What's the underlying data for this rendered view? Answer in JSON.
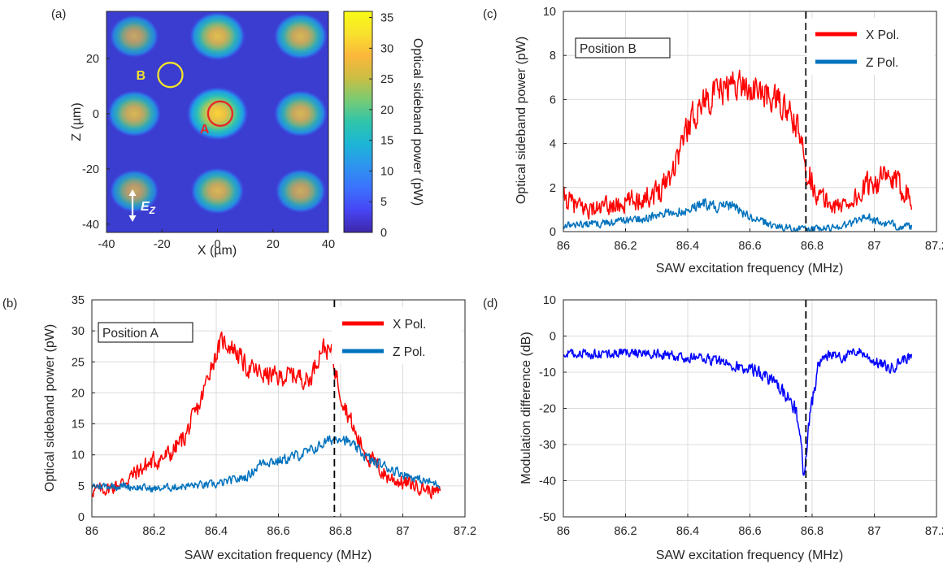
{
  "figure": {
    "panel_labels": [
      "(a)",
      "(b)",
      "(c)",
      "(d)"
    ]
  },
  "chart_data": [
    {
      "panel": "(a)",
      "type": "heatmap",
      "xlabel": "X (µm)",
      "ylabel": "Z (µm)",
      "xlim": [
        -40,
        40
      ],
      "ylim": [
        -43,
        37
      ],
      "xticks": [
        "-40",
        "-20",
        "0",
        "20",
        "40"
      ],
      "yticks": [
        "-40",
        "-20",
        "0",
        "20"
      ],
      "colorbar": {
        "label": "Optical sideband power (pW)",
        "range": [
          0,
          36
        ],
        "ticks": [
          "0",
          "5",
          "10",
          "15",
          "20",
          "25",
          "30",
          "35"
        ],
        "colormap": [
          "#3e26a8",
          "#4745f4",
          "#3b71fe",
          "#2e94ef",
          "#1cb5d6",
          "#2fc5ab",
          "#79cb73",
          "#cbbe43",
          "#fbb73b",
          "#f9e22d",
          "#f9fb15"
        ]
      },
      "hotspots": [
        {
          "x": 0,
          "z": 0,
          "value": 33
        },
        {
          "x": -30,
          "z": 0,
          "value": 22
        },
        {
          "x": 30,
          "z": 0,
          "value": 22
        },
        {
          "x": 0,
          "z": 28,
          "value": 25
        },
        {
          "x": -30,
          "z": 28,
          "value": 16
        },
        {
          "x": 30,
          "z": 28,
          "value": 22
        },
        {
          "x": 0,
          "z": -28,
          "value": 22
        },
        {
          "x": -30,
          "z": -28,
          "value": 16
        },
        {
          "x": 30,
          "z": -28,
          "value": 18
        }
      ],
      "markers": [
        {
          "label": "A",
          "x": 1,
          "z": 0,
          "color": "#e8262a"
        },
        {
          "label": "B",
          "x": -17,
          "z": 14,
          "color": "#f2e32b"
        }
      ],
      "annotation": {
        "label": "E",
        "subscript": "Z",
        "color": "#ffffff"
      }
    },
    {
      "panel": "(b)",
      "type": "line",
      "xlabel": "SAW excitation frequency (MHz)",
      "ylabel": "Optical sideband power (pW)",
      "xlim": [
        86,
        87.2
      ],
      "ylim": [
        0,
        35
      ],
      "xticks": [
        "86",
        "86.2",
        "86.4",
        "86.6",
        "86.8",
        "87",
        "87.2"
      ],
      "yticks": [
        "0",
        "5",
        "10",
        "15",
        "20",
        "25",
        "30",
        "35"
      ],
      "box_label": "Position A",
      "vline_x": 86.78,
      "noise": 1.4,
      "series": [
        {
          "name": "X Pol.",
          "color": "#ff0000",
          "x": [
            86.0,
            86.05,
            86.1,
            86.15,
            86.2,
            86.25,
            86.3,
            86.35,
            86.38,
            86.42,
            86.46,
            86.5,
            86.55,
            86.6,
            86.65,
            86.7,
            86.74,
            86.77,
            86.8,
            86.85,
            86.9,
            86.95,
            87.0,
            87.05,
            87.1,
            87.12
          ],
          "y": [
            4.2,
            4.5,
            5.5,
            7.5,
            9.0,
            10.0,
            13.0,
            18.5,
            24.0,
            28.5,
            27.0,
            24.0,
            23.0,
            22.5,
            23.0,
            22.0,
            27.5,
            26.5,
            20.0,
            13.0,
            9.0,
            6.5,
            5.5,
            5.0,
            4.0,
            4.0
          ]
        },
        {
          "name": "Z Pol.",
          "color": "#0072bd",
          "x": [
            86.0,
            86.1,
            86.2,
            86.3,
            86.4,
            86.5,
            86.55,
            86.6,
            86.7,
            86.75,
            86.8,
            86.85,
            86.9,
            87.0,
            87.05,
            87.12
          ],
          "y": [
            5.0,
            5.0,
            4.5,
            5.0,
            5.2,
            6.5,
            9.0,
            9.0,
            10.5,
            12.0,
            13.0,
            11.0,
            9.0,
            7.0,
            6.0,
            5.2
          ]
        }
      ]
    },
    {
      "panel": "(c)",
      "type": "line",
      "xlabel": "SAW excitation frequency (MHz)",
      "ylabel": "Optical sideband power (pW)",
      "xlim": [
        86,
        87.2
      ],
      "ylim": [
        0,
        10
      ],
      "xticks": [
        "86",
        "86.2",
        "86.4",
        "86.6",
        "86.8",
        "87",
        "87.2"
      ],
      "yticks": [
        "0",
        "2",
        "4",
        "6",
        "8",
        "10"
      ],
      "box_label": "Position B",
      "vline_x": 86.78,
      "noise": 0.6,
      "series": [
        {
          "name": "X Pol.",
          "color": "#ff0000",
          "x": [
            86.0,
            86.05,
            86.1,
            86.2,
            86.3,
            86.35,
            86.4,
            86.45,
            86.5,
            86.55,
            86.6,
            86.65,
            86.7,
            86.75,
            86.78,
            86.82,
            86.88,
            86.95,
            87.0,
            87.05,
            87.1,
            87.12
          ],
          "y": [
            1.5,
            1.1,
            1.0,
            1.3,
            1.8,
            2.8,
            4.8,
            6.0,
            6.3,
            6.8,
            6.5,
            6.2,
            5.8,
            4.8,
            3.0,
            1.6,
            1.1,
            1.6,
            2.4,
            2.3,
            1.9,
            1.6
          ]
        },
        {
          "name": "Z Pol.",
          "color": "#0072bd",
          "x": [
            86.0,
            86.1,
            86.2,
            86.3,
            86.4,
            86.45,
            86.5,
            86.55,
            86.6,
            86.7,
            86.78,
            86.85,
            86.92,
            86.97,
            87.02,
            87.08,
            87.12
          ],
          "y": [
            0.3,
            0.35,
            0.5,
            0.7,
            1.0,
            1.3,
            1.1,
            1.2,
            0.6,
            0.2,
            0.1,
            0.15,
            0.35,
            0.7,
            0.4,
            0.25,
            0.2
          ]
        }
      ]
    },
    {
      "panel": "(d)",
      "type": "line",
      "xlabel": "SAW excitation frequency (MHz)",
      "ylabel": "Modulation difference (dB)",
      "xlim": [
        86,
        87.2
      ],
      "ylim": [
        -50,
        10
      ],
      "xticks": [
        "86",
        "86.2",
        "86.4",
        "86.6",
        "86.8",
        "87",
        "87.2"
      ],
      "yticks": [
        "-50",
        "-40",
        "-30",
        "-20",
        "-10",
        "0",
        "10"
      ],
      "vline_x": 86.78,
      "noise": 2.0,
      "series": [
        {
          "color": "#0000ff",
          "x": [
            86.0,
            86.1,
            86.2,
            86.3,
            86.4,
            86.45,
            86.5,
            86.55,
            86.6,
            86.65,
            86.7,
            86.74,
            86.76,
            86.775,
            86.79,
            86.82,
            86.86,
            86.9,
            86.95,
            87.0,
            87.05,
            87.1,
            87.12
          ],
          "y": [
            -5,
            -5,
            -4.5,
            -5,
            -6,
            -6,
            -7,
            -8,
            -9,
            -11,
            -15,
            -19,
            -25,
            -40,
            -24,
            -8,
            -5,
            -6,
            -4,
            -7,
            -9,
            -6,
            -6
          ]
        }
      ]
    }
  ]
}
